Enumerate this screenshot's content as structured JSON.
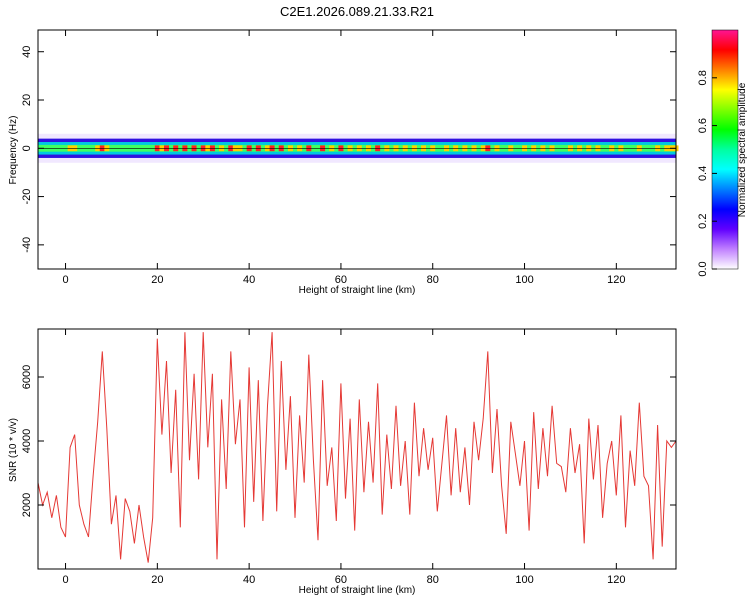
{
  "title": "C2E1.2026.089.21.33.R21",
  "chart_data": [
    {
      "type": "heatmap",
      "xlabel": "Height of straight line (km)",
      "ylabel": "Frequency (Hz)",
      "xlim": [
        -6,
        133
      ],
      "ylim": [
        -50,
        49
      ],
      "xticks": [
        0,
        20,
        40,
        60,
        80,
        100,
        120
      ],
      "yticks": [
        -40,
        -20,
        0,
        20,
        40
      ],
      "band_center_hz": 0,
      "band_halfwidth_hz": 4,
      "colorbar": {
        "label": "Normalized spectral amplitude",
        "range": [
          0,
          1
        ],
        "ticks": [
          0.0,
          0.2,
          0.4,
          0.6,
          0.8
        ],
        "tick_labels": [
          "0.0",
          "0.2",
          "0.4",
          "0.6",
          "0.8"
        ],
        "colors": [
          "#ff1493",
          "#ff0000",
          "#ff8000",
          "#ffff00",
          "#80ff00",
          "#00ff00",
          "#00ffa0",
          "#00ffff",
          "#0080ff",
          "#0000ff",
          "#6000ff",
          "#c080ff",
          "#ffffff"
        ]
      }
    },
    {
      "type": "line",
      "xlabel": "Height of straight line (km)",
      "ylabel": "SNR (10 * v/v)",
      "xlim": [
        -6,
        133
      ],
      "ylim": [
        0,
        7500
      ],
      "xticks": [
        0,
        20,
        40,
        60,
        80,
        100,
        120
      ],
      "yticks": [
        2000,
        4000,
        6000
      ],
      "color": "#e53935",
      "x": [
        -6,
        -5,
        -4,
        -3,
        -2,
        -1,
        0,
        1,
        2,
        3,
        4,
        5,
        6,
        7,
        8,
        9,
        10,
        11,
        12,
        13,
        14,
        15,
        16,
        17,
        18,
        19,
        20,
        21,
        22,
        23,
        24,
        25,
        26,
        27,
        28,
        29,
        30,
        31,
        32,
        33,
        34,
        35,
        36,
        37,
        38,
        39,
        40,
        41,
        42,
        43,
        44,
        45,
        46,
        47,
        48,
        49,
        50,
        51,
        52,
        53,
        54,
        55,
        56,
        57,
        58,
        59,
        60,
        61,
        62,
        63,
        64,
        65,
        66,
        67,
        68,
        69,
        70,
        71,
        72,
        73,
        74,
        75,
        76,
        77,
        78,
        79,
        80,
        81,
        82,
        83,
        84,
        85,
        86,
        87,
        88,
        89,
        90,
        91,
        92,
        93,
        94,
        95,
        96,
        97,
        98,
        99,
        100,
        101,
        102,
        103,
        104,
        105,
        106,
        107,
        108,
        109,
        110,
        111,
        112,
        113,
        114,
        115,
        116,
        117,
        118,
        119,
        120,
        121,
        122,
        123,
        124,
        125,
        126,
        127,
        128,
        129,
        130,
        131,
        132,
        133
      ],
      "y": [
        2700,
        2000,
        2400,
        1600,
        2300,
        1300,
        1000,
        3800,
        4200,
        2000,
        1400,
        1000,
        2900,
        4600,
        6800,
        4400,
        1400,
        2300,
        300,
        2200,
        1800,
        800,
        2000,
        1000,
        200,
        1600,
        7200,
        4200,
        6500,
        3000,
        5600,
        1300,
        7400,
        3400,
        6100,
        2800,
        7400,
        3800,
        6100,
        300,
        5300,
        2500,
        6800,
        3900,
        5300,
        1300,
        6300,
        2100,
        5900,
        1500,
        5100,
        7400,
        1800,
        6500,
        3100,
        5400,
        1600,
        4800,
        2700,
        6700,
        3400,
        900,
        5900,
        2600,
        3800,
        1500,
        5800,
        2200,
        4700,
        1200,
        5300,
        2400,
        4600,
        2700,
        5800,
        1700,
        4200,
        2500,
        5100,
        2600,
        4000,
        1700,
        5200,
        2900,
        4400,
        3100,
        4100,
        1800,
        3300,
        4800,
        2300,
        4400,
        2400,
        3800,
        2000,
        4600,
        3400,
        4700,
        6800,
        3000,
        5000,
        2600,
        1100,
        4600,
        3600,
        2600,
        4000,
        1200,
        4900,
        2500,
        4400,
        2900,
        5100,
        3300,
        3200,
        2400,
        4400,
        3000,
        3900,
        800,
        4700,
        2800,
        4500,
        1600,
        3300,
        4000,
        2300,
        4800,
        1300,
        3700,
        2600,
        5200,
        2900,
        2600,
        300,
        4500,
        700,
        4000,
        3800,
        4000
      ]
    }
  ]
}
